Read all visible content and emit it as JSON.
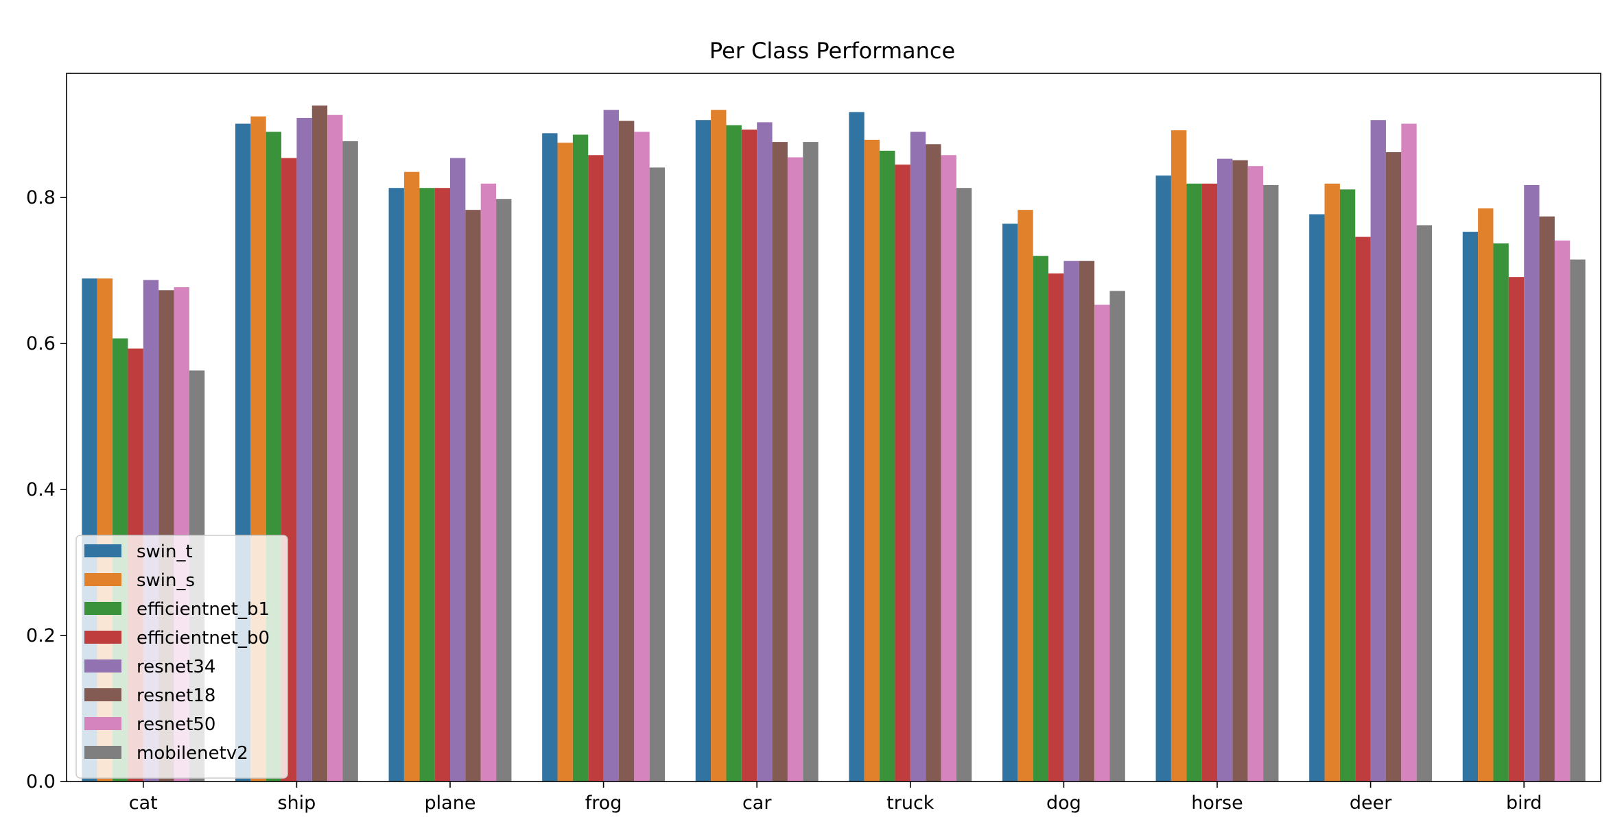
{
  "chart_data": {
    "type": "bar",
    "title": "Per Class Performance",
    "xlabel": "",
    "ylabel": "",
    "ylim": [
      0,
      0.97
    ],
    "yticks": [
      0.0,
      0.2,
      0.4,
      0.6,
      0.8
    ],
    "ytick_labels": [
      "0.0",
      "0.2",
      "0.4",
      "0.6",
      "0.8"
    ],
    "grid": false,
    "legend_position": "lower-left",
    "categories": [
      "cat",
      "ship",
      "plane",
      "frog",
      "car",
      "truck",
      "dog",
      "horse",
      "deer",
      "bird"
    ],
    "series": [
      {
        "name": "swin_t",
        "color": "#3274a1",
        "values": [
          0.689,
          0.901,
          0.813,
          0.888,
          0.906,
          0.917,
          0.764,
          0.83,
          0.777,
          0.753
        ]
      },
      {
        "name": "swin_s",
        "color": "#e1812c",
        "values": [
          0.689,
          0.911,
          0.835,
          0.875,
          0.92,
          0.879,
          0.783,
          0.892,
          0.819,
          0.785
        ]
      },
      {
        "name": "efficientnet_b1",
        "color": "#3a923a",
        "values": [
          0.607,
          0.89,
          0.813,
          0.886,
          0.899,
          0.864,
          0.72,
          0.819,
          0.811,
          0.737
        ]
      },
      {
        "name": "efficientnet_b0",
        "color": "#c03d3e",
        "values": [
          0.593,
          0.854,
          0.813,
          0.858,
          0.893,
          0.845,
          0.696,
          0.819,
          0.746,
          0.691
        ]
      },
      {
        "name": "resnet34",
        "color": "#9372b2",
        "values": [
          0.687,
          0.909,
          0.854,
          0.92,
          0.903,
          0.89,
          0.713,
          0.853,
          0.906,
          0.817
        ]
      },
      {
        "name": "resnet18",
        "color": "#845b53",
        "values": [
          0.673,
          0.926,
          0.783,
          0.905,
          0.876,
          0.873,
          0.713,
          0.851,
          0.862,
          0.774
        ]
      },
      {
        "name": "resnet50",
        "color": "#d684bd",
        "values": [
          0.677,
          0.913,
          0.819,
          0.89,
          0.855,
          0.858,
          0.653,
          0.843,
          0.901,
          0.741
        ]
      },
      {
        "name": "mobilenetv2",
        "color": "#7f7f7f",
        "values": [
          0.563,
          0.877,
          0.798,
          0.841,
          0.876,
          0.813,
          0.672,
          0.817,
          0.762,
          0.715
        ]
      }
    ]
  }
}
